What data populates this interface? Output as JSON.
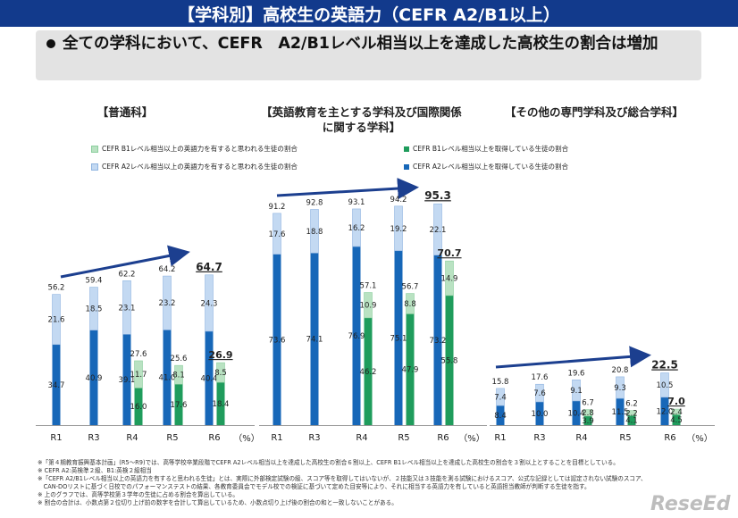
{
  "header": {
    "title": "【学科別】高校生の英語力（CEFR A2/B1以上）"
  },
  "callout": {
    "text": "全ての学科において、CEFR　A2/B1レベル相当以上を達成した高校生の割合は増加"
  },
  "legend": {
    "b1_estimate": "CEFR B1レベル相当以上の英語力を有すると思われる生徒の割合",
    "a2_estimate": "CEFR A2レベル相当以上の英語力を有すると思われる生徒の割合",
    "b1_achieved": "CEFR B1レベル相当以上を取得している生徒の割合",
    "a2_achieved": "CEFR A2レベル相当以上を取得している生徒の割合"
  },
  "colors": {
    "a2_achieved": "#1767b8",
    "a2_estimate": "#c3d9f2",
    "b1_achieved": "#1f9c5c",
    "b1_estimate": "#b9e2c2",
    "title_bar": "#123a8c"
  },
  "unit_label": "（%）",
  "notes": [
    "※「第４期教育振興基本計画」(R5～R9)では、高等学校卒業段階でCEFR A2レベル相当以上を達成した高校生の割合６割以上、CEFR B1レベル相当以上を達成した高校生の割合を３割以上とすることを目標としている。",
    "※ CEFR A2:英検準２級、B1:英検２級相当",
    "※「CEFR A2/B1レベル相当以上の英語力を有すると思われる生徒」とは、実際に外部検定試験の級、スコア等を取得してはいないが、２技能又は３技能を測る試験におけるスコア、公式な記録としては認定されない試験のスコア、",
    "　CAN-DOリストに基づく日校でのパフォーマンステストの結果、各教育委員会でモデル校での検証に基づいて定めた目安等により、それに相当する英語力を有していると英語担当教師が判断する生徒を指す。",
    "※ 上のグラフでは、高等学校第３学年の生徒に占める割合を算出している。",
    "※ 割合の合計は、小数点第２位切り上げ前の数字を合計して算出しているため、小数点切り上げ後の割合の和と一致しないことがある。"
  ],
  "logo": "ReseEd",
  "chart_data": [
    {
      "type": "bar",
      "title": "【普通科】",
      "categories": [
        "R1",
        "R3",
        "R4",
        "R5",
        "R6"
      ],
      "ylim": [
        0,
        100
      ],
      "a2": [
        {
          "label": "R1",
          "achieved": 34.7,
          "estimate": 21.6,
          "total": 56.2
        },
        {
          "label": "R3",
          "achieved": 40.9,
          "estimate": 18.5,
          "total": 59.4
        },
        {
          "label": "R4",
          "achieved": 39.1,
          "estimate": 23.1,
          "total": 62.2
        },
        {
          "label": "R5",
          "achieved": 41.0,
          "estimate": 23.2,
          "total": 64.2
        },
        {
          "label": "R6",
          "achieved": 40.4,
          "estimate": 24.3,
          "total": 64.7
        }
      ],
      "b1": [
        {
          "label": "R4",
          "achieved": 16.0,
          "estimate": 11.7,
          "total": 27.6
        },
        {
          "label": "R5",
          "achieved": 17.6,
          "estimate": 8.1,
          "total": 25.6
        },
        {
          "label": "R6",
          "achieved": 18.4,
          "estimate": 8.5,
          "total": 26.9
        }
      ]
    },
    {
      "type": "bar",
      "title": "【英語教育を主とする学科及び国際関係に関する学科】",
      "categories": [
        "R1",
        "R3",
        "R4",
        "R5",
        "R6"
      ],
      "ylim": [
        0,
        100
      ],
      "a2": [
        {
          "label": "R1",
          "achieved": 73.6,
          "estimate": 17.6,
          "total": 91.2
        },
        {
          "label": "R3",
          "achieved": 74.1,
          "estimate": 18.8,
          "total": 92.8
        },
        {
          "label": "R4",
          "achieved": 76.9,
          "estimate": 16.2,
          "total": 93.1
        },
        {
          "label": "R5",
          "achieved": 75.1,
          "estimate": 19.2,
          "total": 94.2
        },
        {
          "label": "R6",
          "achieved": 73.2,
          "estimate": 22.1,
          "total": 95.3
        }
      ],
      "b1": [
        {
          "label": "R4",
          "achieved": 46.2,
          "estimate": 10.9,
          "total": 57.1
        },
        {
          "label": "R5",
          "achieved": 47.9,
          "estimate": 8.8,
          "total": 56.7
        },
        {
          "label": "R6",
          "achieved": 55.8,
          "estimate": 14.9,
          "total": 70.7
        }
      ]
    },
    {
      "type": "bar",
      "title": "【その他の専門学科及び総合学科】",
      "categories": [
        "R1",
        "R3",
        "R4",
        "R5",
        "R6"
      ],
      "ylim": [
        0,
        100
      ],
      "a2": [
        {
          "label": "R1",
          "achieved": 8.4,
          "estimate": 7.4,
          "total": 15.8
        },
        {
          "label": "R3",
          "achieved": 10.0,
          "estimate": 7.6,
          "total": 17.6
        },
        {
          "label": "R4",
          "achieved": 10.4,
          "estimate": 9.1,
          "total": 19.6
        },
        {
          "label": "R5",
          "achieved": 11.5,
          "estimate": 9.3,
          "total": 20.8
        },
        {
          "label": "R6",
          "achieved": 12.0,
          "estimate": 10.5,
          "total": 22.5
        }
      ],
      "b1": [
        {
          "label": "R4",
          "achieved": 3.9,
          "estimate": 2.8,
          "total": 6.7
        },
        {
          "label": "R5",
          "achieved": 4.1,
          "estimate": 2.2,
          "total": 6.2
        },
        {
          "label": "R6",
          "achieved": 4.5,
          "estimate": 2.4,
          "total": 7.0
        }
      ]
    }
  ]
}
